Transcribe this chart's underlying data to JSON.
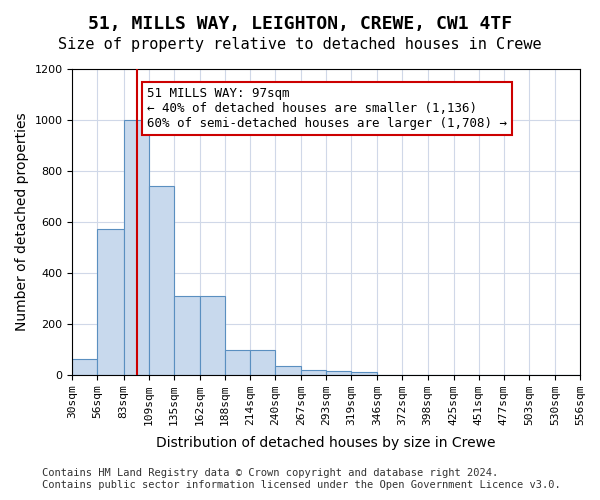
{
  "title": "51, MILLS WAY, LEIGHTON, CREWE, CW1 4TF",
  "subtitle": "Size of property relative to detached houses in Crewe",
  "xlabel": "Distribution of detached houses by size in Crewe",
  "ylabel": "Number of detached properties",
  "bin_edges": [
    30,
    56,
    83,
    109,
    135,
    162,
    188,
    214,
    240,
    267,
    293,
    319,
    346,
    372,
    398,
    425,
    451,
    477,
    503,
    530,
    556
  ],
  "bar_heights": [
    60,
    570,
    1000,
    740,
    310,
    310,
    95,
    95,
    35,
    20,
    15,
    10,
    0,
    0,
    0,
    0,
    0,
    0,
    0,
    0
  ],
  "bar_color": "#c8d9ed",
  "bar_edge_color": "#5a8fc0",
  "property_size": 97,
  "red_line_color": "#cc0000",
  "annotation_text": "51 MILLS WAY: 97sqm\n← 40% of detached houses are smaller (1,136)\n60% of semi-detached houses are larger (1,708) →",
  "annotation_box_color": "#ffffff",
  "annotation_box_edge_color": "#cc0000",
  "ylim": [
    0,
    1200
  ],
  "yticks": [
    0,
    200,
    400,
    600,
    800,
    1000,
    1200
  ],
  "footer_line1": "Contains HM Land Registry data © Crown copyright and database right 2024.",
  "footer_line2": "Contains public sector information licensed under the Open Government Licence v3.0.",
  "title_fontsize": 13,
  "subtitle_fontsize": 11,
  "axis_label_fontsize": 10,
  "tick_fontsize": 8,
  "annotation_fontsize": 9,
  "footer_fontsize": 7.5,
  "background_color": "#ffffff",
  "grid_color": "#d0d8e8"
}
